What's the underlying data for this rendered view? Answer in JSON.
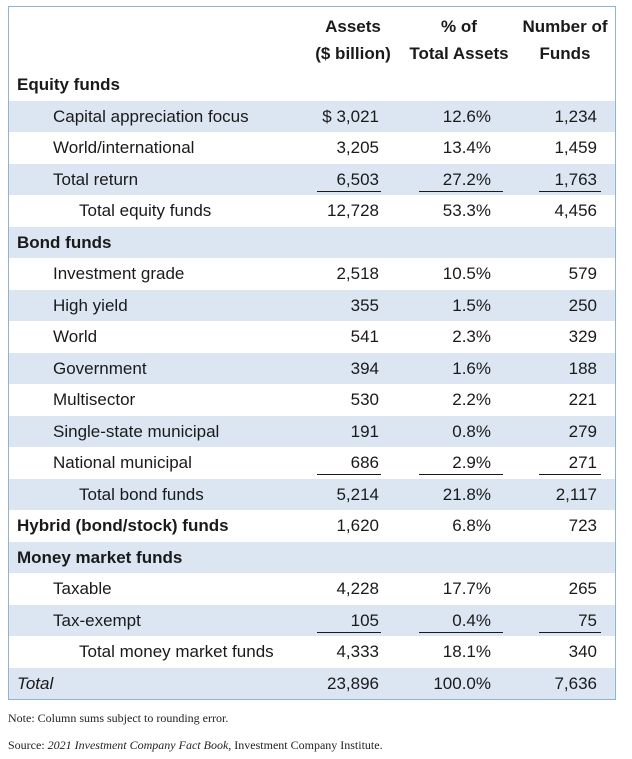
{
  "header": {
    "col1_line1": "Assets",
    "col1_line2": "($ billion)",
    "col2_line1": "% of",
    "col2_line2": "Total Assets",
    "col3_line1": "Number of",
    "col3_line2": "Funds"
  },
  "rows": [
    {
      "label": "Equity funds",
      "type": "cat"
    },
    {
      "label": "Capital appreciation focus",
      "type": "sub",
      "assets": "$ 3,021",
      "pct": "12.6%",
      "funds": "1,234"
    },
    {
      "label": "World/international",
      "type": "sub",
      "assets": "3,205",
      "pct": "13.4%",
      "funds": "1,459"
    },
    {
      "label": "Total return",
      "type": "sub",
      "assets": "6,503",
      "pct": "27.2%",
      "funds": "1,763",
      "underline": true
    },
    {
      "label": "Total equity funds",
      "type": "tot",
      "assets": "12,728",
      "pct": "53.3%",
      "funds": "4,456"
    },
    {
      "label": "Bond funds",
      "type": "cat"
    },
    {
      "label": "Investment grade",
      "type": "sub",
      "assets": "2,518",
      "pct": "10.5%",
      "funds": "579"
    },
    {
      "label": "High yield",
      "type": "sub",
      "assets": "355",
      "pct": "1.5%",
      "funds": "250"
    },
    {
      "label": "World",
      "type": "sub",
      "assets": "541",
      "pct": "2.3%",
      "funds": "329"
    },
    {
      "label": "Government",
      "type": "sub",
      "assets": "394",
      "pct": "1.6%",
      "funds": "188"
    },
    {
      "label": "Multisector",
      "type": "sub",
      "assets": "530",
      "pct": "2.2%",
      "funds": "221"
    },
    {
      "label": "Single-state municipal",
      "type": "sub",
      "assets": "191",
      "pct": "0.8%",
      "funds": "279"
    },
    {
      "label": "National municipal",
      "type": "sub",
      "assets": "686",
      "pct": "2.9%",
      "funds": "271",
      "underline": true
    },
    {
      "label": "Total bond funds",
      "type": "tot",
      "assets": "5,214",
      "pct": "21.8%",
      "funds": "2,117"
    },
    {
      "label": "Hybrid (bond/stock) funds",
      "type": "cat",
      "assets": "1,620",
      "pct": "6.8%",
      "funds": "723"
    },
    {
      "label": "Money market funds",
      "type": "cat"
    },
    {
      "label": "Taxable",
      "type": "sub",
      "assets": "4,228",
      "pct": "17.7%",
      "funds": "265"
    },
    {
      "label": "Tax-exempt",
      "type": "sub",
      "assets": "105",
      "pct": "0.4%",
      "funds": "75",
      "underline": true
    },
    {
      "label": "Total money market funds",
      "type": "tot",
      "assets": "4,333",
      "pct": "18.1%",
      "funds": "340"
    },
    {
      "label": "Total",
      "type": "grand",
      "assets": "23,896",
      "pct": "100.0%",
      "funds": "7,636"
    }
  ],
  "footer": {
    "note": "Note: Column sums subject to rounding error.",
    "source_prefix": "Source: ",
    "source_title": "2021 Investment Company Fact Book,",
    "source_suffix": " Investment Company Institute."
  }
}
